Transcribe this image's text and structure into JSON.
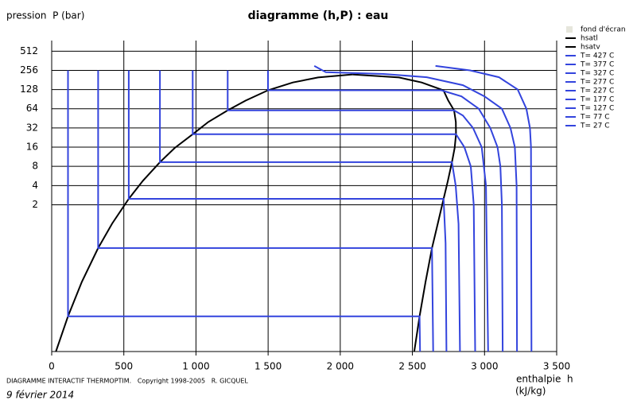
{
  "chart_data": {
    "type": "line",
    "title": "diagramme (h,P) : eau",
    "y_label": "pression  P (bar)",
    "x_label": "enthalpie  h",
    "x_unit": "(kJ/kg)",
    "footer": "DIAGRAMME INTERACTIF THERMOPTIM.   Copyright 1998-2005   R. GICQUEL",
    "date": "9 février 2014",
    "xlim": [
      0,
      3500
    ],
    "xticks": [
      0,
      500,
      {
        "value": 1000,
        "label": "1 000"
      },
      {
        "value": 1500,
        "label": "1 500"
      },
      {
        "value": 2000,
        "label": "2 000"
      },
      {
        "value": 2500,
        "label": "2 500"
      },
      {
        "value": 3000,
        "label": "3 000"
      },
      {
        "value": 3500,
        "label": "3 500"
      }
    ],
    "ylim": [
      0.01,
      1000
    ],
    "yscale": "log",
    "yticks": [
      2,
      4,
      8,
      16,
      32,
      64,
      128,
      256,
      512
    ],
    "grid": true,
    "legend": "right",
    "legend_background": {
      "name": "fond d'écran",
      "color": "#e6e6dc"
    },
    "series": [
      {
        "name": "hsatl",
        "color": "#000000",
        "x": [
          29,
          113,
          209,
          322,
          419,
          534,
          632,
          750,
          852,
          977,
          1085,
          1220,
          1344,
          1499,
          1671,
          1846,
          2084
        ],
        "values": [
          0.01,
          0.0357,
          0.1235,
          0.419,
          1.014,
          2.48,
          4.76,
          9.32,
          15.5,
          25.5,
          39.7,
          60.3,
          85.8,
          124.7,
          165.2,
          198.1,
          220.6
        ]
      },
      {
        "name": "hsatv",
        "color": "#000000",
        "x": [
          2084,
          2407,
          2564,
          2715,
          2749,
          2789,
          2801,
          2802,
          2793,
          2774,
          2746,
          2716,
          2676,
          2636,
          2591,
          2550,
          2513
        ],
        "values": [
          220.6,
          198.1,
          165.2,
          124.7,
          85.8,
          60.3,
          39.7,
          25.5,
          15.5,
          9.32,
          4.76,
          2.48,
          1.014,
          0.419,
          0.1235,
          0.0357,
          0.01
        ]
      },
      {
        "name": "T= 427 C",
        "color": "#3344dd",
        "x": [
          2660,
          2900,
          3100,
          3230,
          3290,
          3315,
          3322,
          3325
        ],
        "values": [
          300,
          256,
          200,
          128,
          64,
          32,
          16,
          0.01
        ]
      },
      {
        "name": "T= 377 C",
        "color": "#3344dd",
        "x": [
          1820,
          1900,
          2300,
          2600,
          2850,
          3000,
          3120,
          3180,
          3210,
          3222,
          3225
        ],
        "values": [
          300,
          240,
          225,
          200,
          150,
          100,
          64,
          32,
          16,
          4,
          0.01
        ]
      },
      {
        "name": "T= 327 C",
        "color": "#3344dd",
        "x": [
          1499,
          1499,
          2700,
          2840,
          2960,
          3040,
          3090,
          3110,
          3120,
          3126
        ],
        "values": [
          256,
          124.7,
          124.7,
          100,
          64,
          32,
          16,
          8,
          2,
          0.01
        ]
      },
      {
        "name": "T= 277 C",
        "color": "#3344dd",
        "x": [
          1220,
          1220,
          2789,
          2850,
          2920,
          2980,
          3010,
          3025
        ],
        "values": [
          256,
          60.3,
          60.3,
          50,
          32,
          16,
          4,
          0.01
        ]
      },
      {
        "name": "T= 227 C",
        "color": "#3344dd",
        "x": [
          977,
          977,
          2802,
          2860,
          2905,
          2925,
          2935
        ],
        "values": [
          256,
          25.5,
          25.5,
          16,
          8,
          2,
          0.01
        ]
      },
      {
        "name": "T= 177 C",
        "color": "#3344dd",
        "x": [
          750,
          750,
          2774,
          2800,
          2820,
          2830
        ],
        "values": [
          256,
          9.32,
          9.32,
          4,
          1,
          0.01
        ]
      },
      {
        "name": "T= 127 C",
        "color": "#3344dd",
        "x": [
          534,
          534,
          2716,
          2730,
          2736
        ],
        "values": [
          256,
          2.48,
          2.48,
          0.5,
          0.01
        ]
      },
      {
        "name": "T= 77 C",
        "color": "#3344dd",
        "x": [
          322,
          322,
          2636,
          2644
        ],
        "values": [
          256,
          0.419,
          0.419,
          0.01
        ]
      },
      {
        "name": "T= 27 C",
        "color": "#3344dd",
        "x": [
          113,
          113,
          2550,
          2553
        ],
        "values": [
          256,
          0.0357,
          0.0357,
          0.01
        ]
      }
    ]
  }
}
